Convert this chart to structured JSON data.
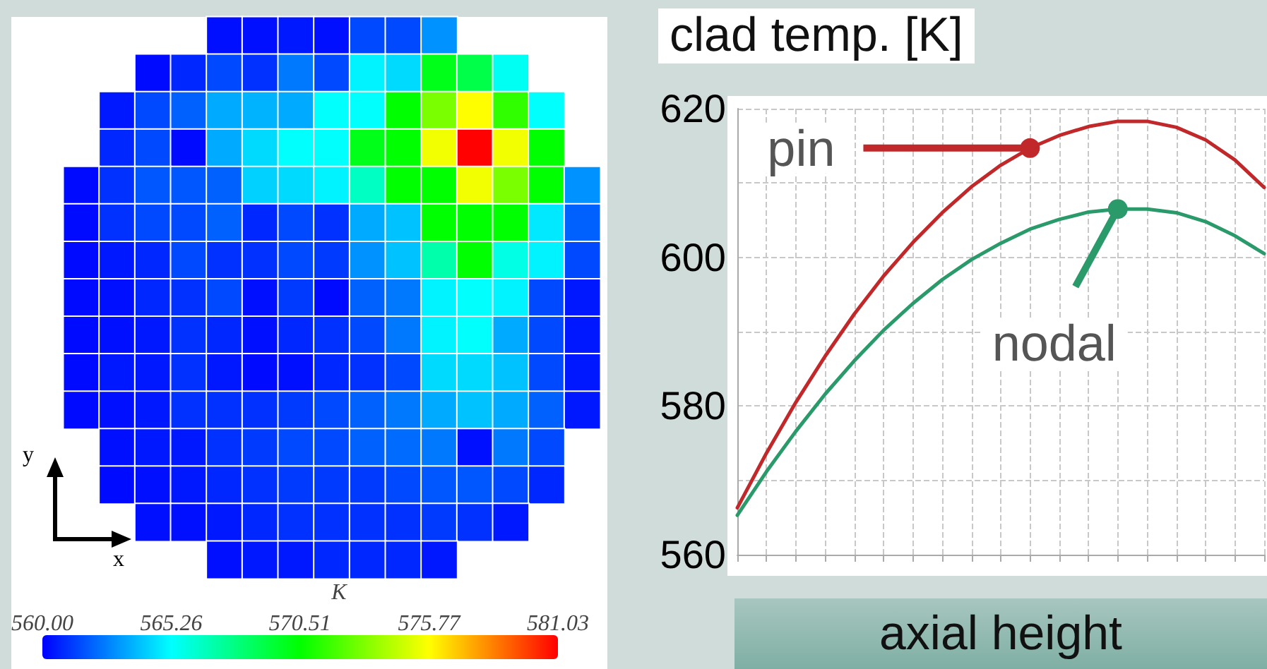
{
  "chart_data": [
    {
      "type": "heatmap",
      "clabel": "K",
      "tick_labels": false,
      "annotations": [
        "x",
        "y"
      ],
      "categories": [
        null,
        null,
        null,
        null,
        null,
        null,
        null,
        null,
        null,
        null,
        null,
        null,
        null,
        null,
        null
      ],
      "y_categories": [
        null,
        null,
        null,
        null,
        null,
        null,
        null,
        null,
        null,
        null,
        null,
        null,
        null,
        null,
        null
      ],
      "clim": [
        560,
        581.03
      ],
      "cticks": [
        {
          "value": 560,
          "label": "560.00"
        },
        565.26,
        570.51,
        575.77,
        581.03
      ],
      "cells": [
        [
          null,
          null,
          null,
          null,
          560.3,
          560.3,
          560.5,
          560.3,
          561.5,
          561.5,
          563,
          null,
          null,
          null,
          null
        ],
        [
          null,
          null,
          560.2,
          560.8,
          561.5,
          561,
          562.5,
          561.5,
          565,
          564.5,
          570,
          569,
          565.5,
          null,
          null
        ],
        [
          null,
          560.5,
          561.5,
          562,
          563.5,
          563.7,
          563.5,
          565.3,
          565.3,
          570.5,
          573,
          575.8,
          571.5,
          565.3,
          null
        ],
        [
          null,
          560.8,
          561.5,
          560.2,
          563.5,
          564.5,
          565.3,
          565.3,
          570,
          570.5,
          575.5,
          581,
          575.5,
          570.5,
          null
        ],
        [
          560.2,
          561,
          561.8,
          561.8,
          562,
          564.3,
          564.5,
          565,
          566.5,
          570.5,
          570.5,
          575.5,
          573,
          570.5,
          563
        ],
        [
          560.2,
          561,
          561.5,
          561.5,
          562,
          560.8,
          561.5,
          561,
          563.5,
          564,
          570.5,
          570.5,
          570.5,
          564.8,
          562
        ],
        [
          560.2,
          560.5,
          560.8,
          561.5,
          561,
          561,
          561.5,
          561.2,
          563,
          564,
          567,
          570.5,
          565.8,
          565,
          561.5
        ],
        [
          560.2,
          560.3,
          560.8,
          561,
          561.5,
          560.3,
          561.2,
          560.2,
          562,
          562.5,
          565,
          565.3,
          565,
          561.5,
          560.5
        ],
        [
          560.2,
          560.3,
          560.5,
          561,
          560.8,
          560.3,
          560.8,
          561,
          561.5,
          562.5,
          565,
          565.3,
          563.5,
          561.5,
          560.5
        ],
        [
          560.2,
          560.5,
          560.5,
          561,
          560.5,
          560.2,
          560.3,
          560.8,
          561,
          561.5,
          564.5,
          564.5,
          564,
          561.5,
          560.5
        ],
        [
          560.2,
          560.3,
          560.5,
          561,
          561,
          561,
          561.2,
          561.5,
          562,
          562.5,
          563.5,
          564,
          563.5,
          562,
          560.5
        ],
        [
          null,
          560.3,
          560.5,
          560.5,
          561,
          561.2,
          561.5,
          561.5,
          562,
          562.2,
          562.5,
          560.3,
          562.5,
          561.5,
          null
        ],
        [
          null,
          560.2,
          560.3,
          560.5,
          560.8,
          561,
          561.2,
          561.2,
          561.2,
          561.5,
          561.8,
          561.8,
          561.5,
          560.8,
          null
        ],
        [
          null,
          null,
          560.3,
          560.3,
          560.5,
          560.8,
          561,
          561,
          561,
          561,
          561.2,
          561,
          560.5,
          null,
          null
        ],
        [
          null,
          null,
          null,
          null,
          560.3,
          560.5,
          560.5,
          560.8,
          560.8,
          560.8,
          560.5,
          null,
          null,
          null,
          null
        ]
      ]
    },
    {
      "type": "line",
      "ylabel": "clad temp. [K]",
      "xlabel": "axial height",
      "tick_labels": "y",
      "grid": true,
      "marker": "none",
      "line_style": "solid",
      "categories": [
        null,
        null,
        null,
        null,
        null,
        null,
        null,
        null,
        null,
        null,
        null,
        null,
        null,
        null,
        null,
        null,
        null,
        null,
        null
      ],
      "ylim": [
        560,
        620
      ],
      "yticks": [
        560,
        {
          "value": 570,
          "label": null
        },
        580,
        {
          "value": 590,
          "label": null
        },
        600,
        {
          "value": 610,
          "label": null
        },
        620
      ],
      "series": [
        {
          "name": "pin",
          "color": "#c0282a",
          "values": [
            566.3,
            573.7,
            580.5,
            586.7,
            592.4,
            597.5,
            602,
            606,
            609.5,
            612.4,
            614.7,
            616.4,
            617.6,
            618.3,
            618.3,
            617.5,
            615.8,
            613.1,
            609.4
          ]
        },
        {
          "name": "nodal",
          "color": "#2a9a6a",
          "values": [
            565.3,
            571.2,
            576.6,
            581.6,
            586.1,
            590.2,
            593.8,
            597,
            599.7,
            601.9,
            603.8,
            605.1,
            606.1,
            606.5,
            606.5,
            606,
            604.8,
            602.9,
            600.5
          ]
        }
      ]
    }
  ]
}
